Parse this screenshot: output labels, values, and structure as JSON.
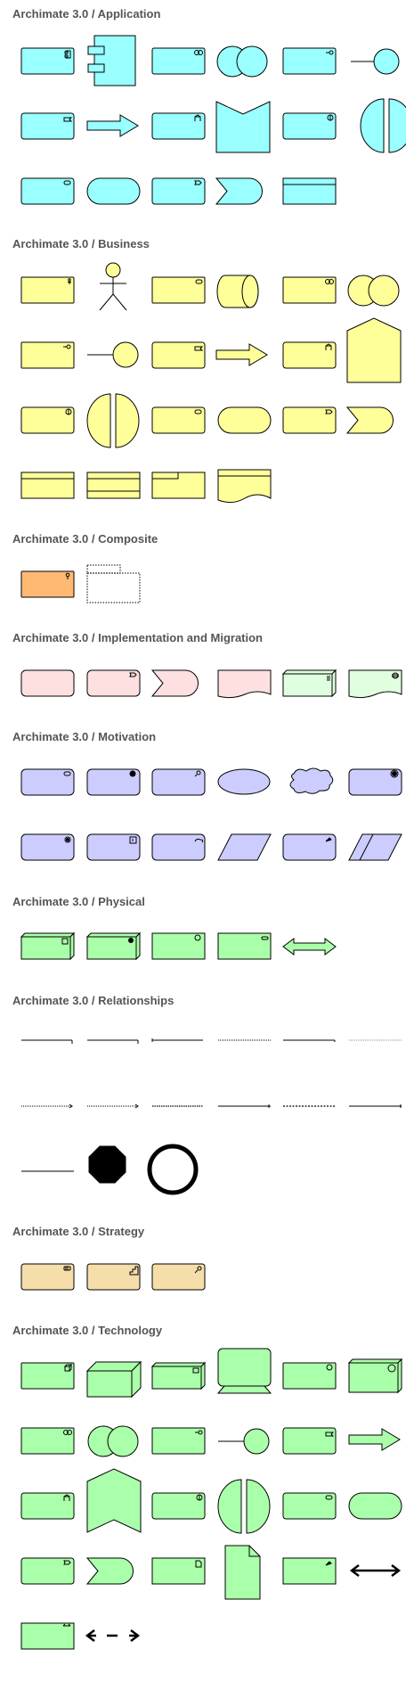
{
  "colors": {
    "application": "#99ffff",
    "business": "#ffff99",
    "composite_grouping": "#ffb973",
    "implementation_migration": "#ffe0e0",
    "implementation_work_package": "#e0ffe0",
    "motivation": "#ccccff",
    "physical": "#aaffaa",
    "strategy": "#f5deaa",
    "technology": "#aaffaa",
    "stroke": "#000000",
    "title_text": "#555555"
  },
  "sections": [
    {
      "id": "application",
      "title": "Archimate 3.0 / Application"
    },
    {
      "id": "business",
      "title": "Archimate 3.0 / Business"
    },
    {
      "id": "composite",
      "title": "Archimate 3.0 / Composite"
    },
    {
      "id": "implementation",
      "title": "Archimate 3.0 / Implementation and Migration"
    },
    {
      "id": "motivation",
      "title": "Archimate 3.0 / Motivation"
    },
    {
      "id": "physical",
      "title": "Archimate 3.0 / Physical"
    },
    {
      "id": "relationships",
      "title": "Archimate 3.0 / Relationships"
    },
    {
      "id": "strategy",
      "title": "Archimate 3.0 / Strategy"
    },
    {
      "id": "technology",
      "title": "Archimate 3.0 / Technology"
    }
  ]
}
